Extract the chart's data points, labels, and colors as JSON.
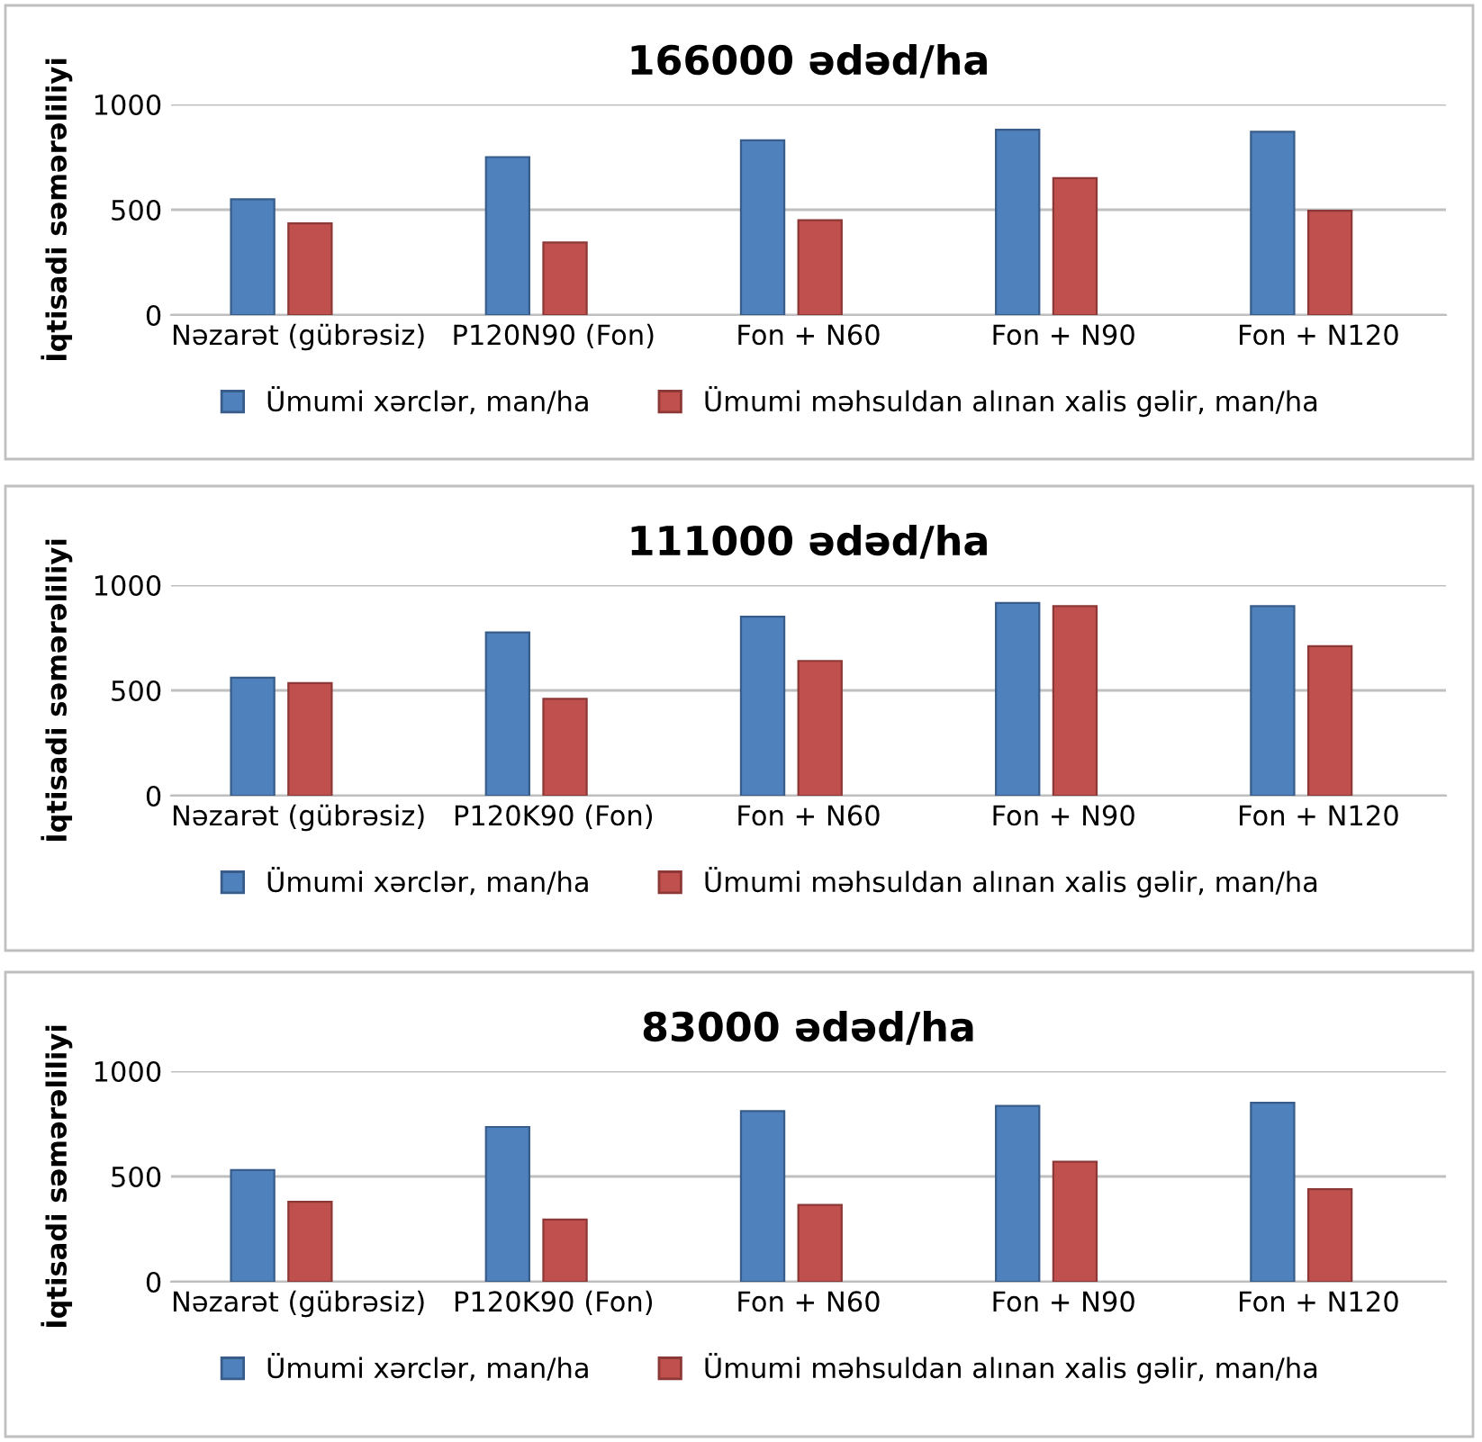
{
  "chart_data": [
    {
      "type": "bar",
      "title": "166000 ədəd/ha",
      "ylabel": "İqtisadi səmərəliliyi",
      "categories": [
        "Nəzarət (gübrəsiz)",
        "P120N90 (Fon)",
        "Fon + N60",
        "Fon + N90",
        "Fon + N120"
      ],
      "series": [
        {
          "name": "Ümumi xərclər, man/ha",
          "color": "#4f81bd",
          "values": [
            550,
            750,
            830,
            880,
            870
          ]
        },
        {
          "name": "Ümumi məhsuldan alınan xalis gəlir, man/ha",
          "color": "#c0504d",
          "values": [
            435,
            345,
            450,
            650,
            495
          ]
        }
      ],
      "ylim": [
        0,
        1000
      ],
      "yticks": [
        0,
        500,
        1000
      ],
      "grid": "y",
      "legend": "bottom"
    },
    {
      "type": "bar",
      "title": "111000 ədəd/ha",
      "ylabel": "İqtisadi səmərəliliyi",
      "categories": [
        "Nəzarət (gübrəsiz)",
        "P120K90 (Fon)",
        "Fon + N60",
        "Fon + N90",
        "Fon + N120"
      ],
      "series": [
        {
          "name": "Ümumi xərclər, man/ha",
          "color": "#4f81bd",
          "values": [
            560,
            775,
            850,
            915,
            900
          ]
        },
        {
          "name": "Ümumi məhsuldan alınan xalis gəlir, man/ha",
          "color": "#c0504d",
          "values": [
            535,
            460,
            640,
            900,
            710
          ]
        }
      ],
      "ylim": [
        0,
        1000
      ],
      "yticks": [
        0,
        500,
        1000
      ],
      "grid": "y",
      "legend": "bottom"
    },
    {
      "type": "bar",
      "title": "83000 ədəd/ha",
      "ylabel": "İqtisadi səmərəliliyi",
      "categories": [
        "Nəzarət (gübrəsiz)",
        "P120K90 (Fon)",
        "Fon + N60",
        "Fon + N90",
        "Fon + N120"
      ],
      "series": [
        {
          "name": "Ümumi xərclər, man/ha",
          "color": "#4f81bd",
          "values": [
            530,
            735,
            810,
            835,
            850
          ]
        },
        {
          "name": "Ümumi məhsuldan alınan xalis gəlir, man/ha",
          "color": "#c0504d",
          "values": [
            380,
            295,
            365,
            570,
            440
          ]
        }
      ],
      "ylim": [
        0,
        1000
      ],
      "yticks": [
        0,
        500,
        1000
      ],
      "grid": "y",
      "legend": "bottom"
    }
  ]
}
